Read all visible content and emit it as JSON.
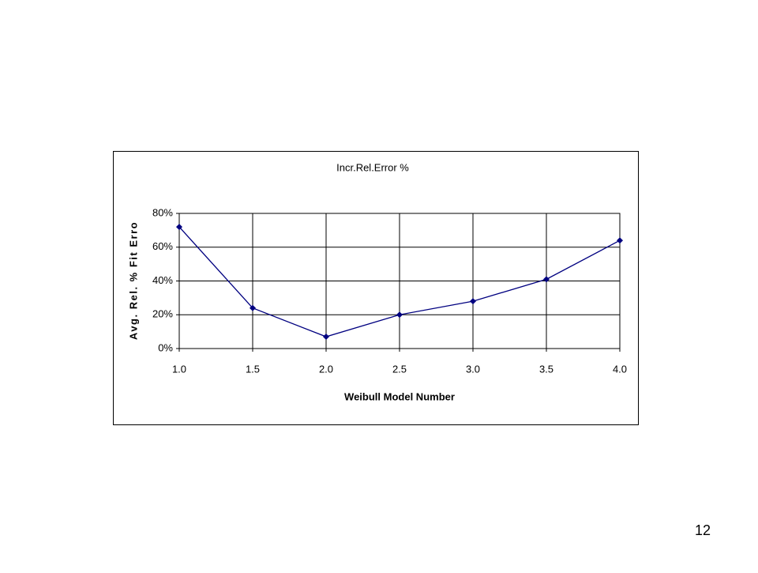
{
  "chart_data": {
    "type": "line",
    "title": "Incr.Rel.Error %",
    "x_label": "Weibull Model Number",
    "y_label": "Avg. Rel. % Fit Erro",
    "x": [
      1,
      1.5,
      2,
      2.5,
      3,
      3.5,
      4
    ],
    "series": [
      {
        "name": "Incr.Rel.Error %",
        "color": "#000080",
        "values": [
          72,
          24,
          7,
          20,
          28,
          41,
          64
        ]
      }
    ],
    "xlim": [
      1,
      4
    ],
    "xticks": [
      {
        "value": 1,
        "label": "1.0"
      },
      {
        "value": 1.5,
        "label": "1.5"
      },
      {
        "value": 2,
        "label": "2.0"
      },
      {
        "value": 2.5,
        "label": "2.5"
      },
      {
        "value": 3,
        "label": "3.0"
      },
      {
        "value": 3.5,
        "label": "3.5"
      },
      {
        "value": 4,
        "label": "4.0"
      }
    ],
    "ylim": [
      0,
      80
    ],
    "yticks": [
      {
        "value": 0,
        "label": "0%"
      },
      {
        "value": 20,
        "label": "20%"
      },
      {
        "value": 40,
        "label": "40%"
      },
      {
        "value": 60,
        "label": "60%"
      },
      {
        "value": 80,
        "label": "80%"
      }
    ],
    "grid": true
  },
  "page_number": 12
}
